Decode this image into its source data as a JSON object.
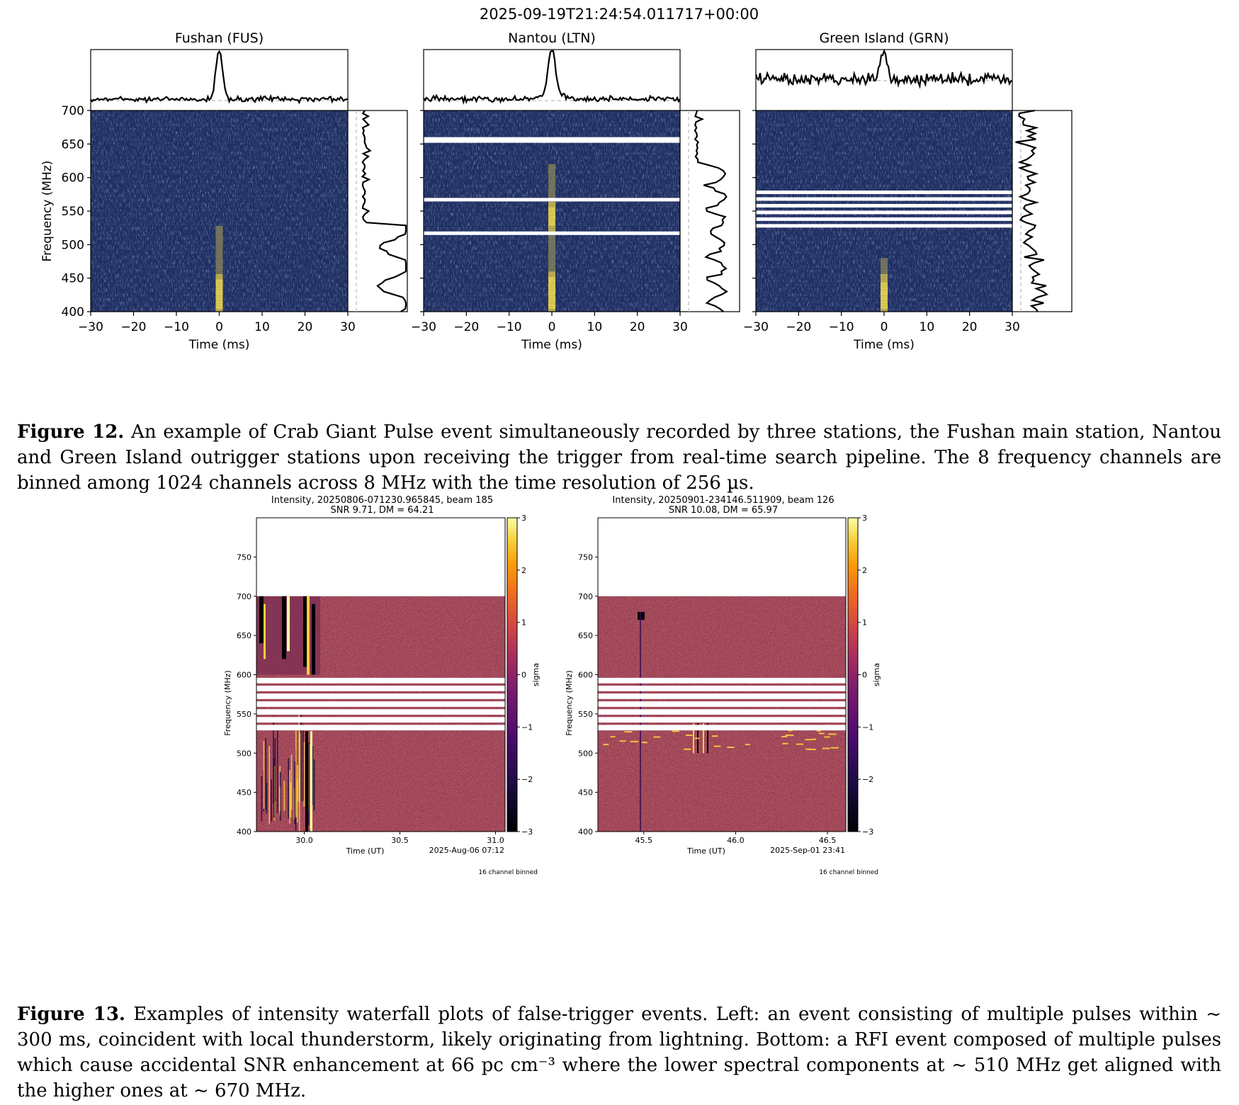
{
  "figure12": {
    "suptitle": "2025-09-19T21:24:54.011717+00:00",
    "ylabel": "Frequency (MHz)",
    "panels": [
      {
        "title": "Fushan (FUS)",
        "xlabel": "Time (ms)"
      },
      {
        "title": "Nantou (LTN)",
        "xlabel": "Time (ms)"
      },
      {
        "title": "Green Island (GRN)",
        "xlabel": "Time (ms)"
      }
    ],
    "caption_label": "Figure 12.",
    "caption_text": "An example of Crab Giant Pulse event simultaneously recorded by three stations, the Fushan main station, Nantou and Green Island outrigger stations upon receiving the trigger from real-time search pipeline. The 8 frequency channels are binned among 1024 channels across 8 MHz with the time resolution of 256 µs."
  },
  "figure13": {
    "panels": [
      {
        "title1": "Intensity, 20250806-071230.965845, beam 185",
        "title2": "SNR 9.71, DM = 64.21",
        "ylabel": "Frequency (MHz)",
        "xlabel": "Time (UT)",
        "date": "2025-Aug-06 07:12",
        "cbar_label": "sigma",
        "footnote": "16 channel binned"
      },
      {
        "title1": "Intensity, 20250901-234146.511909, beam 126",
        "title2": "SNR 10.08, DM = 65.97",
        "ylabel": "Frequency (MHz)",
        "xlabel": "Time (UT)",
        "date": "2025-Sep-01 23:41",
        "cbar_label": "sigma",
        "footnote": "16 channel binned"
      }
    ],
    "caption_label": "Figure 13.",
    "caption_text": "Examples of intensity waterfall plots of false-trigger events. Left: an event consisting of multiple pulses within ~ 300 ms, coincident with local thunderstorm, likely originating from lightning. Bottom: a RFI event composed of multiple pulses which cause accidental SNR enhancement at 66 pc cm⁻³ where the lower spectral components at ~ 510 MHz get aligned with the higher ones at ~ 670 MHz."
  },
  "chart_data": [
    {
      "type": "heatmap",
      "title": "Fushan (FUS)",
      "xlabel": "Time (ms)",
      "ylabel": "Frequency (MHz)",
      "xlim": [
        -30,
        30
      ],
      "ylim": [
        400,
        700
      ],
      "xticks": [
        -30,
        -20,
        -10,
        0,
        10,
        20,
        30
      ],
      "yticks": [
        400,
        450,
        500,
        550,
        600,
        650,
        700
      ],
      "pulse_time_ms": 0,
      "pulse_freq_range_mhz": [
        400,
        525
      ],
      "masked_bands_mhz": []
    },
    {
      "type": "heatmap",
      "title": "Nantou (LTN)",
      "xlabel": "Time (ms)",
      "xlim": [
        -30,
        30
      ],
      "ylim": [
        400,
        700
      ],
      "xticks": [
        -30,
        -20,
        -10,
        0,
        10,
        20,
        30
      ],
      "pulse_time_ms": 0,
      "pulse_freq_range_mhz": [
        400,
        620
      ],
      "masked_bands_mhz": [
        655,
        567,
        517
      ]
    },
    {
      "type": "heatmap",
      "title": "Green Island (GRN)",
      "xlabel": "Time (ms)",
      "xlim": [
        -30,
        30
      ],
      "ylim": [
        400,
        700
      ],
      "xticks": [
        -30,
        -20,
        -10,
        0,
        10,
        20,
        30
      ],
      "pulse_time_ms": 0,
      "pulse_freq_range_mhz": [
        400,
        480
      ],
      "masked_bands_mhz": [
        578,
        568,
        558,
        548,
        538,
        528
      ]
    },
    {
      "type": "heatmap",
      "title": "Intensity, 20250806-071230.965845, beam 185",
      "xlabel": "Time (UT)",
      "ylabel": "Frequency (MHz)",
      "xlim": [
        29.75,
        31.05
      ],
      "ylim": [
        400,
        800
      ],
      "xticks": [
        30.0,
        30.5,
        31.0
      ],
      "yticks": [
        400,
        450,
        500,
        550,
        600,
        650,
        700,
        750
      ],
      "colorbar": {
        "label": "sigma",
        "range": [
          -3,
          3
        ],
        "ticks": [
          -3,
          -2,
          -1,
          0,
          1,
          2,
          3
        ]
      },
      "masked_bands_mhz": [
        592,
        582,
        572,
        562,
        552,
        542,
        532
      ]
    },
    {
      "type": "heatmap",
      "title": "Intensity, 20250901-234146.511909, beam 126",
      "xlabel": "Time (UT)",
      "ylabel": "Frequency (MHz)",
      "xlim": [
        45.25,
        46.6
      ],
      "ylim": [
        400,
        800
      ],
      "xticks": [
        45.5,
        46.0,
        46.5
      ],
      "yticks": [
        400,
        450,
        500,
        550,
        600,
        650,
        700,
        750
      ],
      "colorbar": {
        "label": "sigma",
        "range": [
          -3,
          3
        ],
        "ticks": [
          -3,
          -2,
          -1,
          0,
          1,
          2,
          3
        ]
      },
      "masked_bands_mhz": [
        592,
        582,
        572,
        562,
        552,
        542,
        532
      ]
    }
  ]
}
